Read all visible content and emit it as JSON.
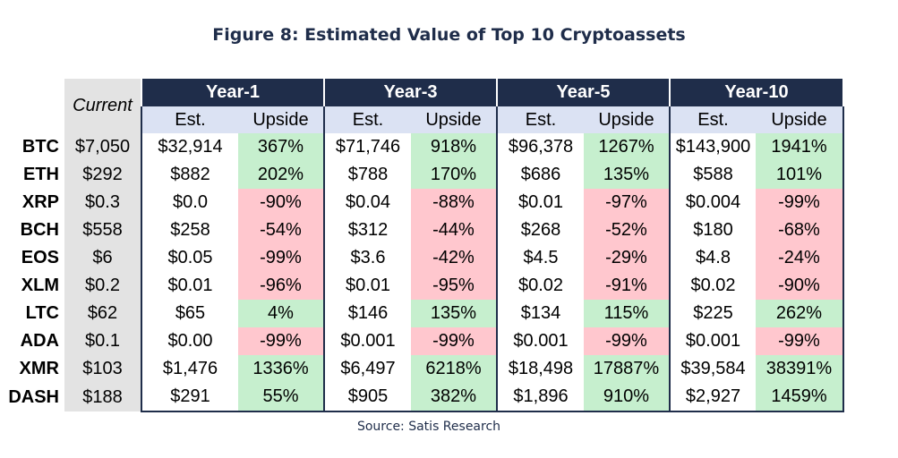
{
  "title": "Figure 8: Estimated Value of Top 10 Cryptoassets",
  "source": "Source: Satis Research",
  "colors": {
    "header_navy": "#1f2d4a",
    "subheader_blue": "#dbe2f3",
    "current_gray": "#e3e3e3",
    "positive_green": "#c6efce",
    "negative_red": "#ffc7ce"
  },
  "chart_data": {
    "type": "table",
    "title": "Figure 8: Estimated Value of Top 10 Cryptoassets",
    "current_label": "Current",
    "periods": [
      "Year-1",
      "Year-3",
      "Year-5",
      "Year-10"
    ],
    "sub_headers": [
      "Est.",
      "Upside"
    ],
    "rows": [
      {
        "symbol": "BTC",
        "current": "$7,050",
        "values": [
          [
            "$32,914",
            "367%"
          ],
          [
            "$71,746",
            "918%"
          ],
          [
            "$96,378",
            "1267%"
          ],
          [
            "$143,900",
            "1941%"
          ]
        ]
      },
      {
        "symbol": "ETH",
        "current": "$292",
        "values": [
          [
            "$882",
            "202%"
          ],
          [
            "$788",
            "170%"
          ],
          [
            "$686",
            "135%"
          ],
          [
            "$588",
            "101%"
          ]
        ]
      },
      {
        "symbol": "XRP",
        "current": "$0.3",
        "values": [
          [
            "$0.0",
            "-90%"
          ],
          [
            "$0.04",
            "-88%"
          ],
          [
            "$0.01",
            "-97%"
          ],
          [
            "$0.004",
            "-99%"
          ]
        ]
      },
      {
        "symbol": "BCH",
        "current": "$558",
        "values": [
          [
            "$258",
            "-54%"
          ],
          [
            "$312",
            "-44%"
          ],
          [
            "$268",
            "-52%"
          ],
          [
            "$180",
            "-68%"
          ]
        ]
      },
      {
        "symbol": "EOS",
        "current": "$6",
        "values": [
          [
            "$0.05",
            "-99%"
          ],
          [
            "$3.6",
            "-42%"
          ],
          [
            "$4.5",
            "-29%"
          ],
          [
            "$4.8",
            "-24%"
          ]
        ]
      },
      {
        "symbol": "XLM",
        "current": "$0.2",
        "values": [
          [
            "$0.01",
            "-96%"
          ],
          [
            "$0.01",
            "-95%"
          ],
          [
            "$0.02",
            "-91%"
          ],
          [
            "$0.02",
            "-90%"
          ]
        ]
      },
      {
        "symbol": "LTC",
        "current": "$62",
        "values": [
          [
            "$65",
            "4%"
          ],
          [
            "$146",
            "135%"
          ],
          [
            "$134",
            "115%"
          ],
          [
            "$225",
            "262%"
          ]
        ]
      },
      {
        "symbol": "ADA",
        "current": "$0.1",
        "values": [
          [
            "$0.00",
            "-99%"
          ],
          [
            "$0.001",
            "-99%"
          ],
          [
            "$0.001",
            "-99%"
          ],
          [
            "$0.001",
            "-99%"
          ]
        ]
      },
      {
        "symbol": "XMR",
        "current": "$103",
        "values": [
          [
            "$1,476",
            "1336%"
          ],
          [
            "$6,497",
            "6218%"
          ],
          [
            "$18,498",
            "17887%"
          ],
          [
            "$39,584",
            "38391%"
          ]
        ]
      },
      {
        "symbol": "DASH",
        "current": "$188",
        "values": [
          [
            "$291",
            "55%"
          ],
          [
            "$905",
            "382%"
          ],
          [
            "$1,896",
            "910%"
          ],
          [
            "$2,927",
            "1459%"
          ]
        ]
      }
    ]
  }
}
